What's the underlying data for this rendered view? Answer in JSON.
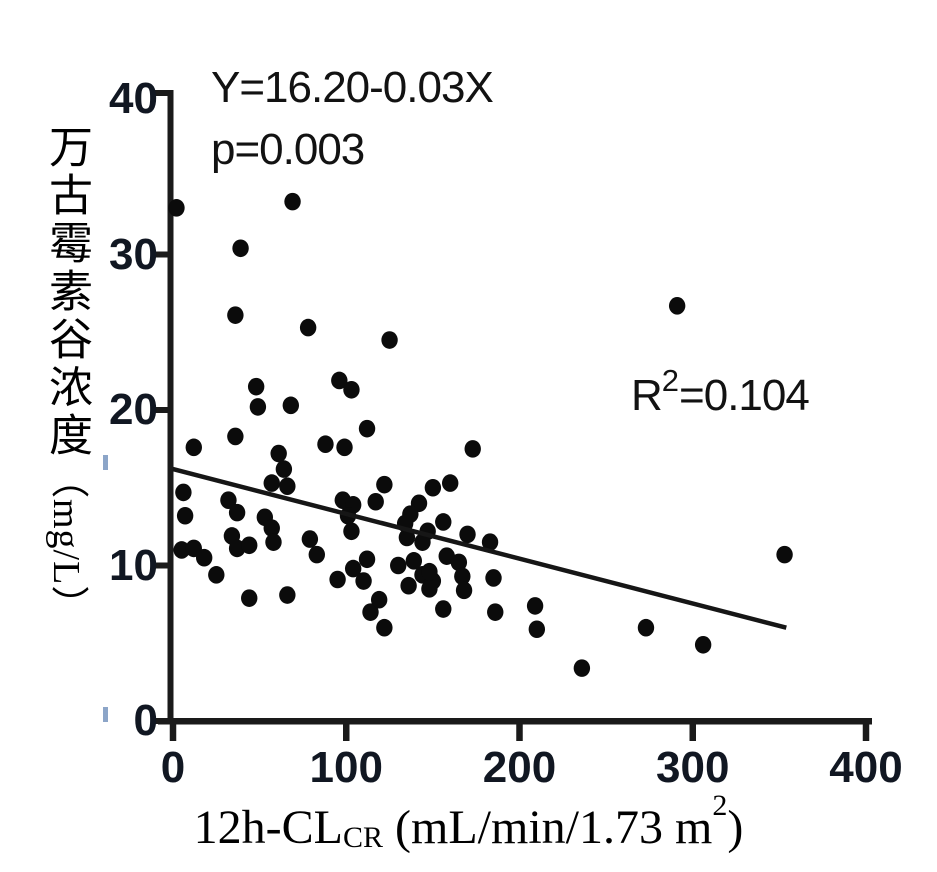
{
  "figure": {
    "annotations": {
      "equation": "Y=16.20-0.03X",
      "p_value": "p=0.003",
      "r2_base": "R",
      "r2_sup": "2",
      "r2_rest": "=0.104"
    },
    "y_axis": {
      "title_cjk": "万古霉素谷浓度",
      "title_unit": "（mg/L）"
    },
    "x_axis": {
      "title_prefix": "12h-CL",
      "title_sub": "CR",
      "title_mid": " (mL/min/1.73 m",
      "title_sup": "2",
      "title_suffix": ")"
    }
  },
  "chart_data": {
    "type": "scatter",
    "title": "",
    "xlabel": "12h-CLCR (mL/min/1.73 m2)",
    "ylabel": "万古霉素谷浓度（mg/L）",
    "xlim": [
      0,
      400
    ],
    "ylim": [
      0,
      40
    ],
    "x_ticks": [
      0,
      100,
      200,
      300,
      400
    ],
    "y_ticks": [
      0,
      10,
      20,
      30,
      40
    ],
    "grid": false,
    "legend": "none",
    "point_color": "#0b0b0b",
    "axis_color": "#1a1a1a",
    "line_color": "#161616",
    "regression": {
      "equation": "Y=16.20-0.03X",
      "p": 0.003,
      "r2": 0.104,
      "x1": 0,
      "y1": 16.2,
      "x2": 354,
      "y2": 6.0
    },
    "points": [
      [
        2,
        33.0
      ],
      [
        69,
        33.4
      ],
      [
        39,
        30.4
      ],
      [
        36,
        26.1
      ],
      [
        78,
        25.3
      ],
      [
        125,
        24.5
      ],
      [
        291,
        26.7
      ],
      [
        12,
        17.6
      ],
      [
        36,
        18.3
      ],
      [
        48,
        21.5
      ],
      [
        49,
        20.2
      ],
      [
        68,
        20.3
      ],
      [
        96,
        21.9
      ],
      [
        103,
        21.3
      ],
      [
        112,
        18.8
      ],
      [
        88,
        17.8
      ],
      [
        99,
        17.6
      ],
      [
        173,
        17.5
      ],
      [
        61,
        17.2
      ],
      [
        64,
        16.2
      ],
      [
        57,
        15.3
      ],
      [
        66,
        15.1
      ],
      [
        6,
        14.7
      ],
      [
        122,
        15.2
      ],
      [
        142,
        14.0
      ],
      [
        150,
        15.0
      ],
      [
        160,
        15.3
      ],
      [
        98,
        14.2
      ],
      [
        104,
        13.9
      ],
      [
        117,
        14.1
      ],
      [
        32,
        14.2
      ],
      [
        37,
        13.4
      ],
      [
        7,
        13.2
      ],
      [
        137,
        13.3
      ],
      [
        101,
        13.2
      ],
      [
        103,
        12.2
      ],
      [
        134,
        12.7
      ],
      [
        135,
        11.8
      ],
      [
        156,
        12.8
      ],
      [
        53,
        13.1
      ],
      [
        57,
        12.4
      ],
      [
        34,
        11.9
      ],
      [
        37,
        11.1
      ],
      [
        44,
        11.3
      ],
      [
        58,
        11.5
      ],
      [
        79,
        11.7
      ],
      [
        5,
        11.0
      ],
      [
        12,
        11.1
      ],
      [
        18,
        10.5
      ],
      [
        83,
        10.7
      ],
      [
        170,
        12.0
      ],
      [
        147,
        12.2
      ],
      [
        144,
        11.5
      ],
      [
        25,
        9.4
      ],
      [
        95,
        9.1
      ],
      [
        104,
        9.8
      ],
      [
        110,
        9.0
      ],
      [
        112,
        10.4
      ],
      [
        130,
        10.0
      ],
      [
        139,
        10.3
      ],
      [
        136,
        8.7
      ],
      [
        144,
        9.4
      ],
      [
        150,
        9.0
      ],
      [
        148,
        9.6
      ],
      [
        148,
        8.5
      ],
      [
        158,
        10.6
      ],
      [
        165,
        10.2
      ],
      [
        167,
        9.3
      ],
      [
        168,
        8.4
      ],
      [
        183,
        11.5
      ],
      [
        185,
        9.2
      ],
      [
        353,
        10.7
      ],
      [
        44,
        7.9
      ],
      [
        66,
        8.1
      ],
      [
        114,
        7.0
      ],
      [
        119,
        7.8
      ],
      [
        122,
        6.0
      ],
      [
        156,
        7.2
      ],
      [
        186,
        7.0
      ],
      [
        209,
        7.4
      ],
      [
        210,
        5.9
      ],
      [
        273,
        6.0
      ],
      [
        306,
        4.9
      ],
      [
        236,
        3.4
      ]
    ]
  }
}
